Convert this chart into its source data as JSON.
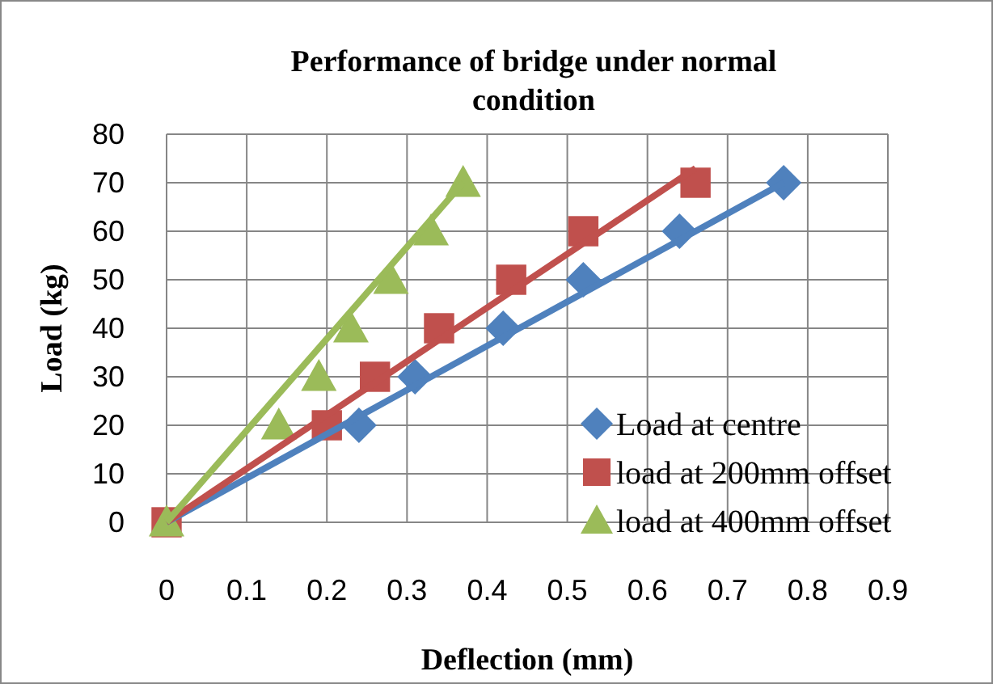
{
  "chart_data": {
    "type": "scatter",
    "title": "Performance of bridge under normal condition",
    "xlabel": "Deflection (mm)",
    "ylabel": "Load (kg)",
    "xlim": [
      0,
      0.9
    ],
    "xticks": [
      0,
      0.1,
      0.2,
      0.3,
      0.4,
      0.5,
      0.6,
      0.7,
      0.8,
      0.9
    ],
    "ylim": [
      0,
      80
    ],
    "yticks": [
      0,
      10,
      20,
      30,
      40,
      50,
      60,
      70,
      80
    ],
    "grid": true,
    "legend": "bottom right",
    "series": [
      {
        "name": "Load at centre",
        "color": "#4f81bd",
        "marker": "diamond",
        "x": [
          0.24,
          0.31,
          0.42,
          0.52,
          0.64,
          0.77
        ],
        "values": [
          20,
          30,
          40,
          50,
          60,
          70
        ]
      },
      {
        "name": "load at 200mm offset",
        "color": "#c0504d",
        "marker": "square",
        "x": [
          0,
          0.2,
          0.26,
          0.34,
          0.43,
          0.52,
          0.66
        ],
        "values": [
          0,
          20,
          30,
          40,
          50,
          60,
          70
        ]
      },
      {
        "name": "load at 400mm offset",
        "color": "#9bbb59",
        "marker": "triangle",
        "x": [
          0,
          0.14,
          0.19,
          0.23,
          0.28,
          0.33,
          0.37
        ],
        "values": [
          0,
          20,
          30,
          40,
          50,
          60,
          70
        ]
      },
      {
        "type": "line",
        "color": "#4f81bd",
        "x": [
          0,
          0.77
        ],
        "values": [
          0,
          70
        ]
      },
      {
        "type": "line",
        "color": "#c0504d",
        "x": [
          0,
          0.66
        ],
        "values": [
          0,
          73
        ]
      },
      {
        "type": "line",
        "color": "#9bbb59",
        "x": [
          0,
          0.37
        ],
        "values": [
          0,
          70
        ]
      }
    ]
  }
}
